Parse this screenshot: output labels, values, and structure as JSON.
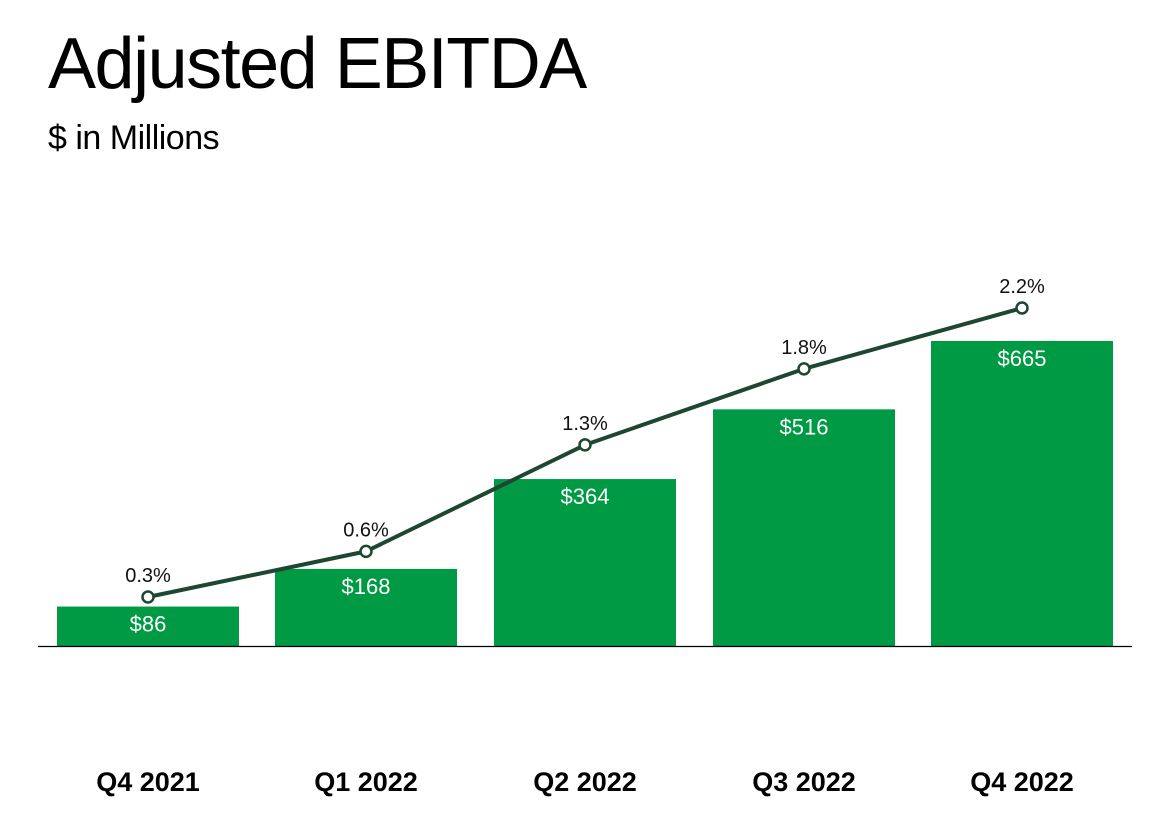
{
  "header": {
    "title": "Adjusted EBITDA",
    "subtitle": "$ in Millions"
  },
  "colors": {
    "bar": "#009944",
    "line": "#1d4731",
    "marker_fill": "#ffffff",
    "baseline": "#000000"
  },
  "chart_data": {
    "type": "bar",
    "title": "Adjusted EBITDA",
    "subtitle": "$ in Millions",
    "categories": [
      "Q4 2021",
      "Q1 2022",
      "Q2 2022",
      "Q3 2022",
      "Q4 2022"
    ],
    "series": [
      {
        "type": "bar",
        "values": [
          86,
          168,
          364,
          516,
          665
        ],
        "labels": [
          "$86",
          "$168",
          "$364",
          "$516",
          "$665"
        ]
      },
      {
        "type": "line",
        "values": [
          0.3,
          0.6,
          1.3,
          1.8,
          2.2
        ],
        "labels": [
          "0.3%",
          "0.6%",
          "1.3%",
          "1.8%",
          "2.2%"
        ]
      }
    ],
    "legend": "none",
    "grid": false
  }
}
